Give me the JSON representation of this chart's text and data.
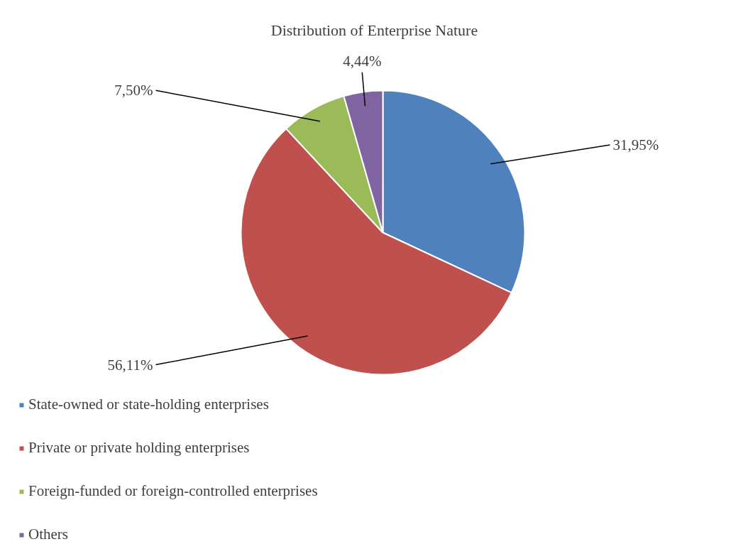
{
  "chart_data": {
    "type": "pie",
    "title": "Distribution of Enterprise Nature",
    "categories": [
      "State-owned or state-holding enterprises",
      "Private or private holding enterprises",
      "Foreign-funded or foreign-controlled enterprises",
      "Others"
    ],
    "values": [
      31.95,
      56.11,
      7.5,
      4.44
    ],
    "colors": [
      "#4f81bd",
      "#c0504d",
      "#9bbb59",
      "#8064a2"
    ],
    "value_labels": [
      "31,95%",
      "56,11%",
      "7,50%",
      "4,44%"
    ],
    "legend": "bottom"
  }
}
